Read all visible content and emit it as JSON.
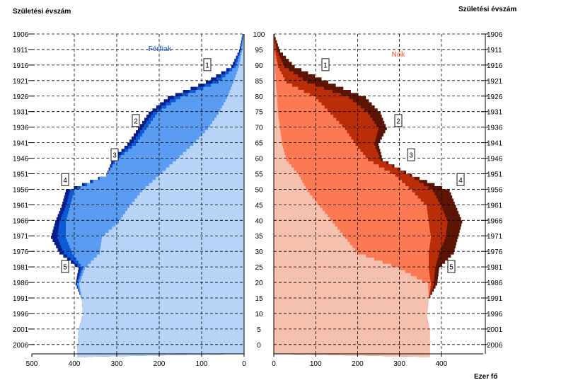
{
  "header": {
    "left_title": "Születési évszám",
    "right_title": "Születési évszám",
    "unit": "Ezer fő"
  },
  "colors": {
    "men": [
      "#b7d3f7",
      "#5a9cf2",
      "#0b5bd6",
      "#0a1f8f"
    ],
    "women": [
      "#f6c0ae",
      "#fb7a54",
      "#b92e08",
      "#5c1505"
    ]
  },
  "chart_data": {
    "type": "bar",
    "title": "",
    "y_axis_label": "",
    "x_axis_label": "Ezer fő",
    "ages": [
      0,
      5,
      10,
      15,
      20,
      25,
      30,
      35,
      40,
      45,
      50,
      55,
      60,
      65,
      70,
      75,
      80,
      85,
      90,
      95,
      100
    ],
    "age_ticks": [
      0,
      5,
      10,
      15,
      20,
      25,
      30,
      35,
      40,
      45,
      50,
      55,
      60,
      65,
      70,
      75,
      80,
      85,
      90,
      95,
      100
    ],
    "age_range": [
      -3,
      100
    ],
    "birth_year_ticks": [
      "1906",
      "1911",
      "1916",
      "1921",
      "1926",
      "1931",
      "1936",
      "1941",
      "1946",
      "1951",
      "1956",
      "1961",
      "1966",
      "1971",
      "1976",
      "1981",
      "1986",
      "1991",
      "1996",
      "2001",
      "2006"
    ],
    "men_axis_ticks": [
      500,
      400,
      300,
      200,
      100,
      0
    ],
    "men_xlim": [
      500,
      0
    ],
    "women_axis_ticks": [
      0,
      100,
      200,
      300,
      400
    ],
    "women_xlim": [
      0,
      500
    ],
    "men": {
      "name": "Férfiak",
      "series": [
        {
          "values": [
            392,
            390,
            380,
            382,
            388,
            375,
            340,
            335,
            295,
            270,
            240,
            200,
            160,
            120,
            85,
            60,
            40,
            25,
            12,
            5,
            1
          ]
        },
        {
          "values": [
            392,
            390,
            380,
            382,
            393,
            380,
            405,
            420,
            420,
            410,
            400,
            325,
            300,
            255,
            230,
            205,
            150,
            60,
            20,
            8,
            2
          ]
        },
        {
          "values": [
            392,
            390,
            380,
            382,
            395,
            385,
            425,
            440,
            435,
            420,
            410,
            325,
            305,
            265,
            240,
            215,
            165,
            75,
            25,
            10,
            3
          ]
        },
        {
          "values": [
            392,
            390,
            380,
            382,
            397,
            390,
            435,
            455,
            445,
            430,
            420,
            325,
            310,
            275,
            250,
            225,
            180,
            90,
            30,
            12,
            4
          ]
        }
      ]
    },
    "women": {
      "name": "Nők",
      "series": [
        {
          "values": [
            372,
            372,
            365,
            370,
            368,
            300,
            200,
            170,
            140,
            110,
            80,
            60,
            30,
            20,
            15,
            10,
            8,
            5,
            3,
            1,
            0
          ]
        },
        {
          "values": [
            372,
            372,
            365,
            370,
            375,
            370,
            370,
            375,
            370,
            365,
            330,
            290,
            225,
            195,
            170,
            135,
            100,
            30,
            10,
            3,
            0
          ]
        },
        {
          "values": [
            372,
            372,
            365,
            370,
            382,
            385,
            395,
            410,
            415,
            400,
            380,
            325,
            255,
            240,
            250,
            225,
            180,
            80,
            25,
            8,
            1
          ]
        },
        {
          "values": [
            372,
            372,
            365,
            370,
            390,
            395,
            430,
            440,
            450,
            435,
            420,
            330,
            260,
            250,
            270,
            255,
            220,
            130,
            50,
            15,
            2
          ]
        }
      ]
    },
    "annotations": [
      {
        "label": "1",
        "age": 90
      },
      {
        "label": "2",
        "age": 72
      },
      {
        "label": "3",
        "age": 61
      },
      {
        "label": "4",
        "age": 53
      },
      {
        "label": "5",
        "age": 25
      }
    ]
  }
}
